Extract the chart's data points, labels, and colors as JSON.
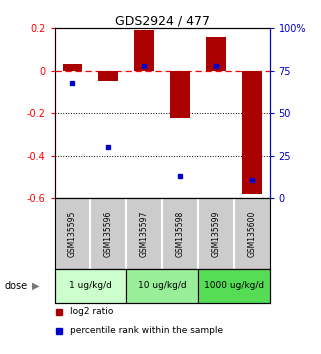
{
  "title": "GDS2924 / 477",
  "samples": [
    "GSM135595",
    "GSM135596",
    "GSM135597",
    "GSM135598",
    "GSM135599",
    "GSM135600"
  ],
  "log2_ratios": [
    0.03,
    -0.05,
    0.19,
    -0.22,
    0.16,
    -0.58
  ],
  "percentile_ranks": [
    68,
    30,
    78,
    13,
    78,
    11
  ],
  "dose_groups": [
    {
      "label": "1 ug/kg/d",
      "start": 0,
      "end": 1,
      "color": "#ccffcc"
    },
    {
      "label": "10 ug/kg/d",
      "start": 2,
      "end": 3,
      "color": "#99ee99"
    },
    {
      "label": "1000 ug/kg/d",
      "start": 4,
      "end": 5,
      "color": "#55dd55"
    }
  ],
  "bar_color": "#aa0000",
  "dot_color": "#0000cc",
  "sample_box_color": "#cccccc",
  "sample_box_edge": "#888888",
  "ylim_left": [
    -0.6,
    0.2
  ],
  "ylim_right": [
    0,
    100
  ],
  "yticks_left": [
    0.2,
    0.0,
    -0.2,
    -0.4,
    -0.6
  ],
  "ytick_labels_left": [
    "0.2",
    "0",
    "-0.2",
    "-0.4",
    "-0.6"
  ],
  "yticks_right": [
    100,
    75,
    50,
    25,
    0
  ],
  "ytick_labels_right": [
    "100%",
    "75",
    "50",
    "25",
    "0"
  ],
  "hline_y": 0.0,
  "dotted_lines": [
    -0.2,
    -0.4
  ],
  "legend_items": [
    {
      "label": "log2 ratio",
      "color": "#aa0000"
    },
    {
      "label": "percentile rank within the sample",
      "color": "#0000cc"
    }
  ],
  "dose_label": "dose",
  "background_color": "#ffffff"
}
